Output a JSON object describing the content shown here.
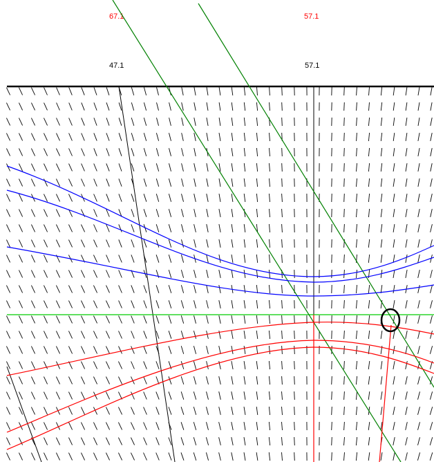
{
  "header": {
    "top_labels": [
      {
        "text": "67.1",
        "color": "#ff0000"
      },
      {
        "text": "57.1",
        "color": "#ff0000"
      }
    ],
    "second_labels": [
      {
        "text": "47.1",
        "color": "#000000"
      },
      {
        "text": "57.1",
        "color": "#000000"
      }
    ]
  },
  "colors": {
    "background": "#ffffff",
    "baseline": "#000000",
    "tick_marks": "#000000",
    "meridians": "#000000",
    "green_lines": "#008000",
    "horizon_line": "#00cc00",
    "blue_curves": "#0000ff",
    "red_curves": "#ff0000",
    "marker_circle": "#000000"
  }
}
